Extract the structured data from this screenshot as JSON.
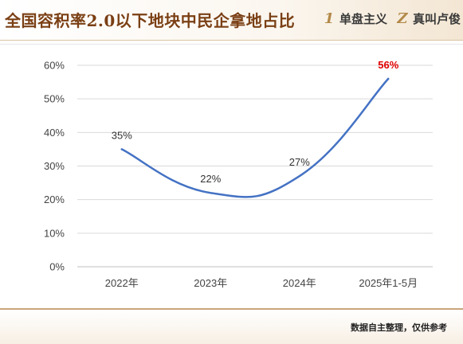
{
  "header": {
    "title": "全国容积率2.0以下地块中民企拿地占比",
    "brand1": {
      "logo_glyph": "1",
      "text": "单盘主义"
    },
    "brand2": {
      "logo_glyph": "Z",
      "text": "真叫卢俊"
    }
  },
  "footer": {
    "source_note": "数据自主整理，仅供参考"
  },
  "colors": {
    "line": "#4472c4",
    "highlight": "#e00000",
    "title": "#7a3f14",
    "accent": "#c9a57a"
  },
  "chart_data": {
    "type": "line",
    "categories": [
      "2022年",
      "2023年",
      "2024年",
      "2025年1-5月"
    ],
    "series": [
      {
        "values": [
          35,
          22,
          27,
          56
        ]
      }
    ],
    "data_labels": [
      "35%",
      "22%",
      "27%",
      "56%"
    ],
    "highlight_index": 3,
    "smooth": true,
    "ylim": [
      0,
      60
    ],
    "yticks": [
      "0%",
      "10%",
      "20%",
      "30%",
      "40%",
      "50%",
      "60%"
    ],
    "grid": true,
    "title": "",
    "xlabel": "",
    "ylabel": ""
  }
}
